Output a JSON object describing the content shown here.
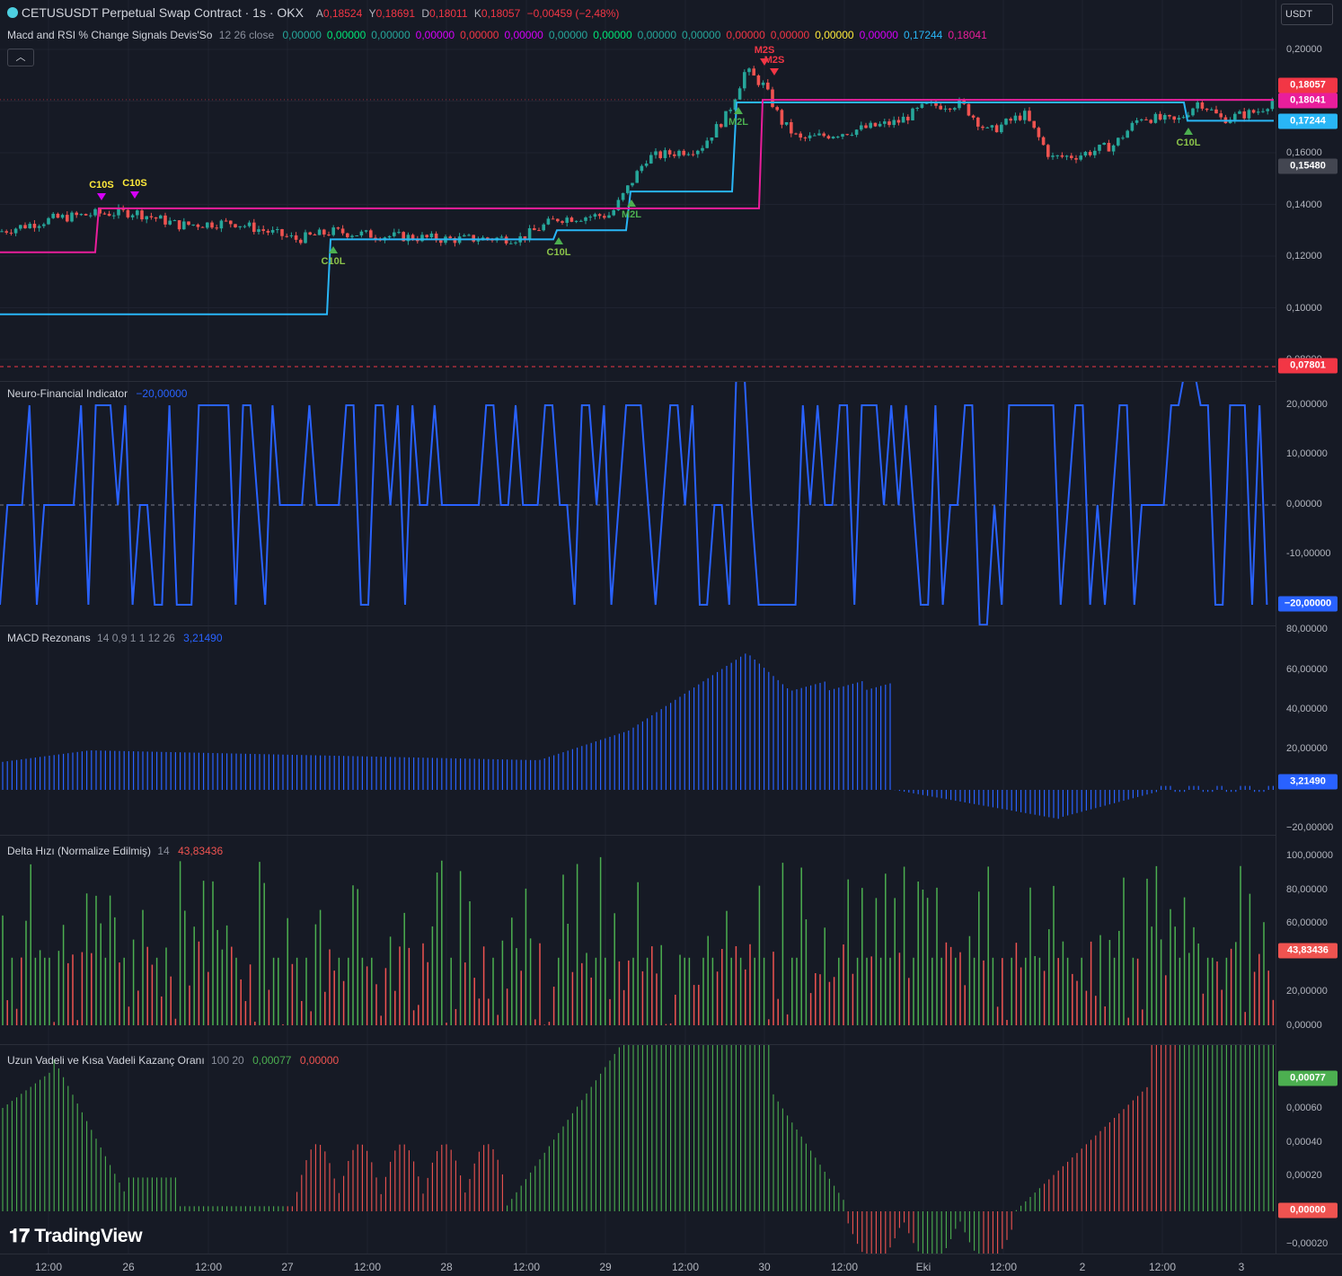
{
  "header": {
    "symbol": "CETUSUSDT Perpetual Swap Contract · 1s · OKX",
    "o_label": "A",
    "o": "0,18524",
    "h_label": "Y",
    "h": "0,18691",
    "l_label": "D",
    "l": "0,18011",
    "c_label": "K",
    "c": "0,18057",
    "change": "−0,00459 (−2,48%)"
  },
  "currency_button": "USDT",
  "collapse_icon": "chevron-up",
  "panes": {
    "main": {
      "name": "Macd and RSI % Change Signals Devis'So",
      "params": "12 26 close",
      "values": [
        {
          "t": "0,00000",
          "c": "#26a69a"
        },
        {
          "t": "0,00000",
          "c": "#00e676"
        },
        {
          "t": "0,00000",
          "c": "#26a69a"
        },
        {
          "t": "0,00000",
          "c": "#d500f9"
        },
        {
          "t": "0,00000",
          "c": "#f23645"
        },
        {
          "t": "0,00000",
          "c": "#d500f9"
        },
        {
          "t": "0,00000",
          "c": "#26a69a"
        },
        {
          "t": "0,00000",
          "c": "#00e676"
        },
        {
          "t": "0,00000",
          "c": "#26a69a"
        },
        {
          "t": "0,00000",
          "c": "#26a69a"
        },
        {
          "t": "0,00000",
          "c": "#f23645"
        },
        {
          "t": "0,00000",
          "c": "#f23645"
        },
        {
          "t": "0,00000",
          "c": "#ffeb3b"
        },
        {
          "t": "0,00000",
          "c": "#d500f9"
        },
        {
          "t": "0,17244",
          "c": "#29b6f6"
        },
        {
          "t": "0,18041",
          "c": "#e91e9b"
        }
      ],
      "ticks": [
        "0,20000",
        "0,16000",
        "0,14000",
        "0,12000",
        "0,10000",
        "0,08000"
      ],
      "tags": [
        {
          "t": "0,18057",
          "bg": "#f23645"
        },
        {
          "t": "0,18041",
          "bg": "#e91e9b"
        },
        {
          "t": "0,17244",
          "bg": "#29b6f6"
        },
        {
          "t": "0,15480",
          "bg": "#434651"
        },
        {
          "t": "0,07801",
          "bg": "#f23645"
        }
      ],
      "signals": [
        "C10S",
        "C10S",
        "C10L",
        "C10L",
        "M2L",
        "M2L",
        "M2S",
        "M2S",
        "C10L"
      ]
    },
    "nfi": {
      "name": "Neuro-Financial Indicator",
      "value": "−20,00000",
      "ticks": [
        "20,00000",
        "10,00000",
        "0,00000",
        "-10,00000"
      ],
      "tag": "−20,00000"
    },
    "macd": {
      "name": "MACD Rezonans",
      "params": "14 0,9 1 1 12 26",
      "value": "3,21490",
      "ticks": [
        "80,00000",
        "60,00000",
        "40,00000",
        "20,00000",
        "−20,00000"
      ],
      "tag": "3,21490"
    },
    "delta": {
      "name": "Delta Hızı (Normalize Edilmiş)",
      "params": "14",
      "value": "43,83436",
      "ticks": [
        "100,00000",
        "80,00000",
        "60,00000",
        "20,00000",
        "0,00000"
      ],
      "tag": "43,83436"
    },
    "gain": {
      "name": "Uzun Vadeli ve Kısa Vadeli Kazanç Oranı",
      "params": "100 20",
      "value1": "0,00077",
      "value2": "0,00000",
      "ticks": [
        "0,00060",
        "0,00040",
        "0,00020",
        "−0,00020"
      ],
      "tag1": "0,00077",
      "tag2": "0,00000"
    }
  },
  "xaxis": [
    "12:00",
    "26",
    "12:00",
    "27",
    "12:00",
    "28",
    "12:00",
    "29",
    "12:00",
    "30",
    "12:00",
    "Eki",
    "12:00",
    "2",
    "12:00",
    "3"
  ],
  "brand": "TradingView",
  "colors": {
    "up": "#26a69a",
    "down": "#ef5350",
    "blue": "#2962ff",
    "magenta": "#e91e9b",
    "cyan": "#29b6f6",
    "green": "#4caf50",
    "red": "#f23645"
  }
}
